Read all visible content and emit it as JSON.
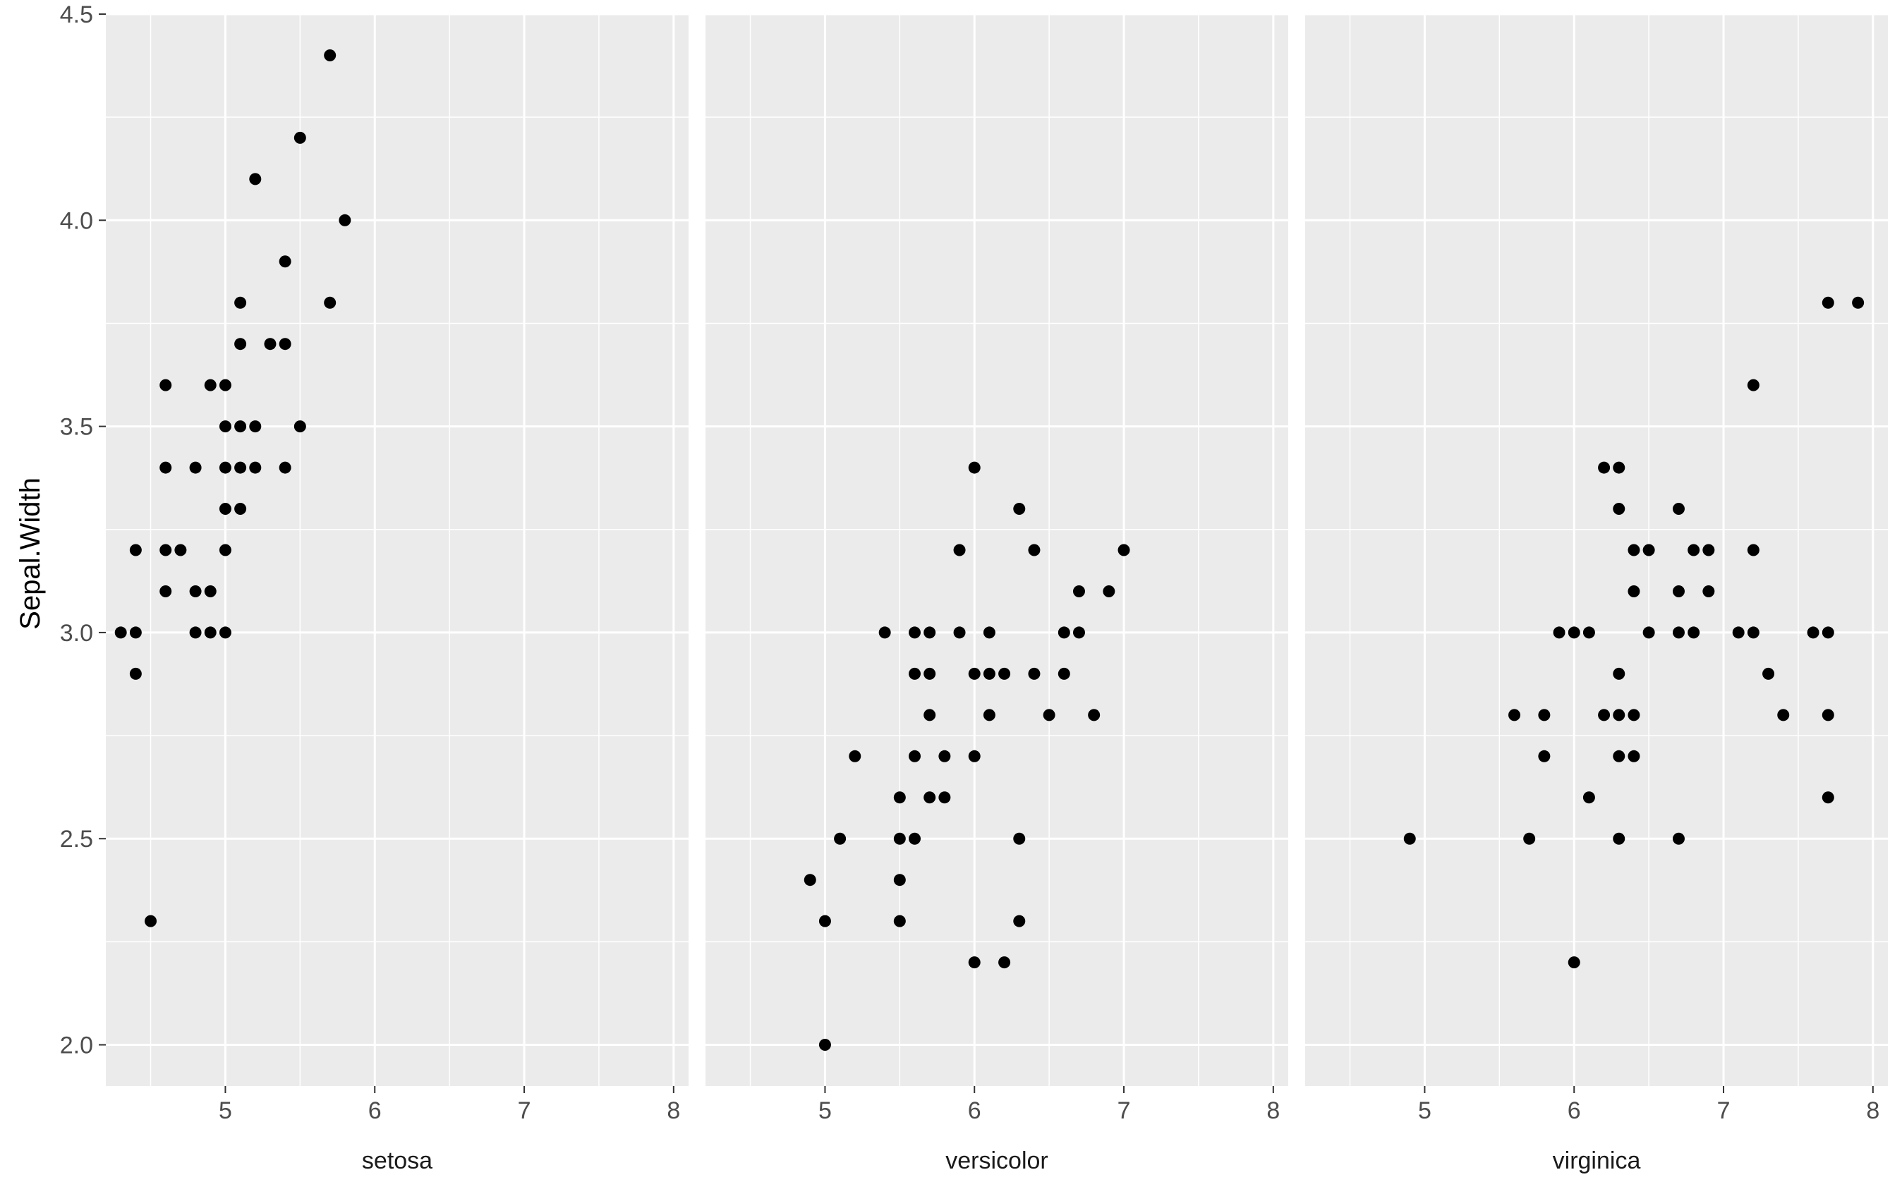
{
  "chart_data": {
    "type": "scatter",
    "faceted": true,
    "ylabel": "Sepal.Width",
    "xlim": [
      4.2,
      8.1
    ],
    "ylim": [
      1.9,
      4.5
    ],
    "x_ticks": [
      5,
      6,
      7,
      8
    ],
    "y_ticks": [
      "2.0",
      "2.5",
      "3.0",
      "3.5",
      "4.0",
      "4.5"
    ],
    "grid": true,
    "panel_background": "#ebebeb",
    "grid_color": "#ffffff",
    "point_color": "#000000",
    "panels": [
      {
        "label": "setosa",
        "points": [
          [
            4.3,
            3.0
          ],
          [
            4.4,
            3.0
          ],
          [
            4.4,
            2.9
          ],
          [
            4.4,
            3.2
          ],
          [
            4.5,
            2.3
          ],
          [
            4.6,
            3.6
          ],
          [
            4.6,
            3.4
          ],
          [
            4.6,
            3.2
          ],
          [
            4.6,
            3.1
          ],
          [
            4.7,
            3.2
          ],
          [
            4.8,
            3.4
          ],
          [
            4.8,
            3.1
          ],
          [
            4.8,
            3.0
          ],
          [
            4.9,
            3.6
          ],
          [
            4.9,
            3.1
          ],
          [
            4.9,
            3.0
          ],
          [
            5.0,
            3.6
          ],
          [
            5.0,
            3.5
          ],
          [
            5.0,
            3.4
          ],
          [
            5.0,
            3.3
          ],
          [
            5.0,
            3.2
          ],
          [
            5.0,
            3.0
          ],
          [
            5.1,
            3.8
          ],
          [
            5.1,
            3.7
          ],
          [
            5.1,
            3.5
          ],
          [
            5.1,
            3.4
          ],
          [
            5.1,
            3.3
          ],
          [
            5.2,
            4.1
          ],
          [
            5.2,
            3.5
          ],
          [
            5.2,
            3.4
          ],
          [
            5.3,
            3.7
          ],
          [
            5.4,
            3.9
          ],
          [
            5.4,
            3.7
          ],
          [
            5.4,
            3.4
          ],
          [
            5.5,
            4.2
          ],
          [
            5.5,
            3.5
          ],
          [
            5.7,
            4.4
          ],
          [
            5.7,
            3.8
          ],
          [
            5.8,
            4.0
          ]
        ]
      },
      {
        "label": "versicolor",
        "points": [
          [
            4.9,
            2.4
          ],
          [
            5.0,
            2.3
          ],
          [
            5.0,
            2.0
          ],
          [
            5.1,
            2.5
          ],
          [
            5.2,
            2.7
          ],
          [
            5.4,
            3.0
          ],
          [
            5.5,
            2.6
          ],
          [
            5.5,
            2.5
          ],
          [
            5.5,
            2.4
          ],
          [
            5.5,
            2.3
          ],
          [
            5.6,
            3.0
          ],
          [
            5.6,
            2.9
          ],
          [
            5.6,
            2.7
          ],
          [
            5.6,
            2.5
          ],
          [
            5.7,
            3.0
          ],
          [
            5.7,
            2.9
          ],
          [
            5.7,
            2.8
          ],
          [
            5.7,
            2.6
          ],
          [
            5.8,
            2.7
          ],
          [
            5.8,
            2.6
          ],
          [
            5.9,
            3.2
          ],
          [
            5.9,
            3.0
          ],
          [
            6.0,
            3.4
          ],
          [
            6.0,
            2.9
          ],
          [
            6.0,
            2.7
          ],
          [
            6.0,
            2.2
          ],
          [
            6.1,
            3.0
          ],
          [
            6.1,
            2.9
          ],
          [
            6.1,
            2.8
          ],
          [
            6.2,
            2.9
          ],
          [
            6.2,
            2.2
          ],
          [
            6.3,
            3.3
          ],
          [
            6.3,
            2.5
          ],
          [
            6.3,
            2.3
          ],
          [
            6.4,
            3.2
          ],
          [
            6.4,
            2.9
          ],
          [
            6.5,
            2.8
          ],
          [
            6.6,
            3.0
          ],
          [
            6.6,
            2.9
          ],
          [
            6.7,
            3.1
          ],
          [
            6.7,
            3.0
          ],
          [
            6.8,
            2.8
          ],
          [
            6.9,
            3.1
          ],
          [
            7.0,
            3.2
          ]
        ]
      },
      {
        "label": "virginica",
        "points": [
          [
            4.9,
            2.5
          ],
          [
            5.6,
            2.8
          ],
          [
            5.7,
            2.5
          ],
          [
            5.8,
            2.8
          ],
          [
            5.8,
            2.7
          ],
          [
            5.9,
            3.0
          ],
          [
            6.0,
            3.0
          ],
          [
            6.0,
            2.2
          ],
          [
            6.1,
            3.0
          ],
          [
            6.1,
            2.6
          ],
          [
            6.2,
            3.4
          ],
          [
            6.2,
            2.8
          ],
          [
            6.3,
            3.4
          ],
          [
            6.3,
            3.3
          ],
          [
            6.3,
            2.9
          ],
          [
            6.3,
            2.8
          ],
          [
            6.3,
            2.7
          ],
          [
            6.3,
            2.5
          ],
          [
            6.4,
            3.2
          ],
          [
            6.4,
            3.1
          ],
          [
            6.4,
            2.8
          ],
          [
            6.4,
            2.7
          ],
          [
            6.5,
            3.2
          ],
          [
            6.5,
            3.0
          ],
          [
            6.7,
            3.3
          ],
          [
            6.7,
            3.1
          ],
          [
            6.7,
            3.0
          ],
          [
            6.7,
            2.5
          ],
          [
            6.8,
            3.2
          ],
          [
            6.8,
            3.0
          ],
          [
            6.9,
            3.2
          ],
          [
            6.9,
            3.1
          ],
          [
            7.1,
            3.0
          ],
          [
            7.2,
            3.6
          ],
          [
            7.2,
            3.2
          ],
          [
            7.2,
            3.0
          ],
          [
            7.3,
            2.9
          ],
          [
            7.4,
            2.8
          ],
          [
            7.6,
            3.0
          ],
          [
            7.7,
            3.8
          ],
          [
            7.7,
            3.0
          ],
          [
            7.7,
            2.8
          ],
          [
            7.7,
            2.6
          ],
          [
            7.9,
            3.8
          ]
        ]
      }
    ]
  }
}
